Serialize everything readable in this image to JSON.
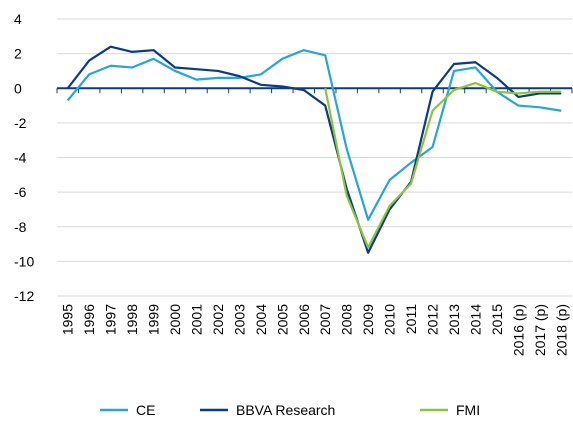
{
  "chart_data": {
    "type": "line",
    "categories": [
      "1995",
      "1996",
      "1997",
      "1998",
      "1999",
      "2000",
      "2001",
      "2002",
      "2003",
      "2004",
      "2005",
      "2006",
      "2007",
      "2008",
      "2009",
      "2010",
      "2011",
      "2012",
      "2013",
      "2014",
      "2015",
      "2016 (p)",
      "2017 (p)",
      "2018 (p)"
    ],
    "series": [
      {
        "name": "CE",
        "color": "#28a3dc",
        "values": [
          -0.7,
          0.8,
          1.3,
          1.2,
          1.7,
          1.0,
          0.5,
          0.6,
          0.6,
          0.8,
          1.7,
          2.2,
          1.9,
          -3.5,
          -7.6,
          -5.3,
          -4.3,
          -3.4,
          1.0,
          1.2,
          -0.2,
          -1.0,
          -1.1,
          -1.3
        ]
      },
      {
        "name": "BBVA Research",
        "color": "#0c3b80",
        "values": [
          0.0,
          1.6,
          2.4,
          2.1,
          2.2,
          1.2,
          1.1,
          1.0,
          0.7,
          0.2,
          0.1,
          -0.1,
          -1.0,
          -5.8,
          -9.5,
          -7.0,
          -5.4,
          -0.2,
          1.4,
          1.5,
          0.6,
          -0.5,
          -0.3,
          -0.3
        ]
      },
      {
        "name": "FMI",
        "color": "#8cc43f",
        "values": [
          null,
          null,
          null,
          null,
          null,
          null,
          null,
          null,
          null,
          null,
          null,
          null,
          0.0,
          -6.2,
          -9.2,
          -6.8,
          -5.5,
          -1.3,
          -0.1,
          0.3,
          -0.2,
          -0.3,
          -0.2,
          -0.2
        ]
      }
    ],
    "ylim": [
      -12,
      4
    ],
    "yticks": [
      4,
      2,
      0,
      -2,
      -4,
      -6,
      -8,
      -10,
      -12
    ],
    "grid": true,
    "legend": "bottom"
  }
}
